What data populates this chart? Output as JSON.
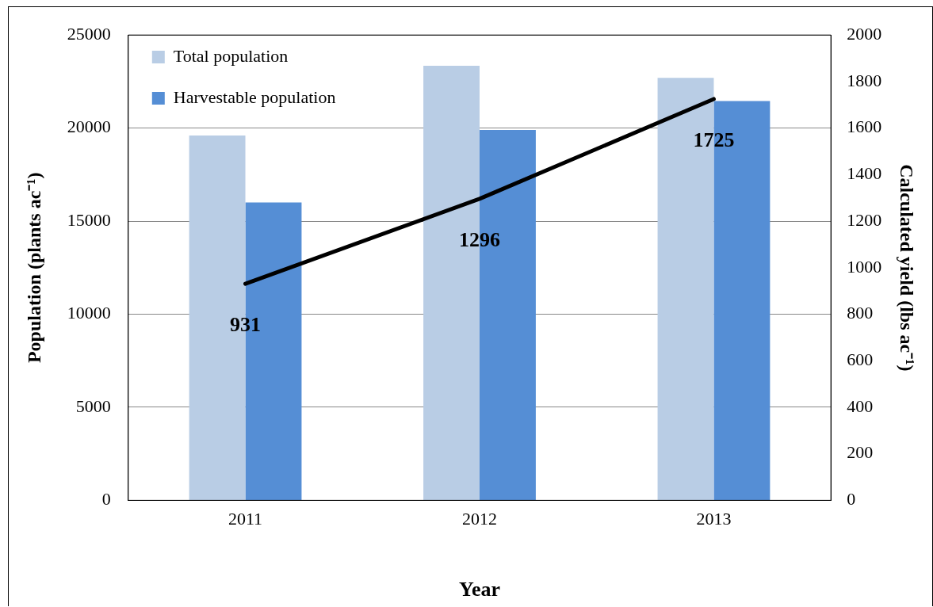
{
  "chart_data": {
    "type": "bar",
    "xlabel": "Year",
    "ylabel": "Population (plants ac⁻¹)",
    "y2label": "Calculated yield (lbs ac⁻¹)",
    "categories": [
      "2011",
      "2012",
      "2013"
    ],
    "series": [
      {
        "name": "Total population",
        "color": "#b9cde5",
        "values": [
          19600,
          23350,
          22700
        ]
      },
      {
        "name": "Harvestable population",
        "color": "#558ed5",
        "values": [
          16000,
          19900,
          21450
        ]
      },
      {
        "type": "line",
        "axis": "y2",
        "color": "#000000",
        "values": [
          931,
          1296,
          1725
        ],
        "value_labels": [
          "931",
          "1296",
          "1725"
        ]
      }
    ],
    "ylim": [
      0,
      25000
    ],
    "yticks": [
      0,
      5000,
      10000,
      15000,
      20000,
      25000
    ],
    "y2lim": [
      0,
      2000
    ],
    "y2ticks": [
      0,
      200,
      400,
      600,
      800,
      1000,
      1200,
      1400,
      1600,
      1800,
      2000
    ],
    "grid": "y",
    "legend": "top left",
    "marker": "none"
  }
}
